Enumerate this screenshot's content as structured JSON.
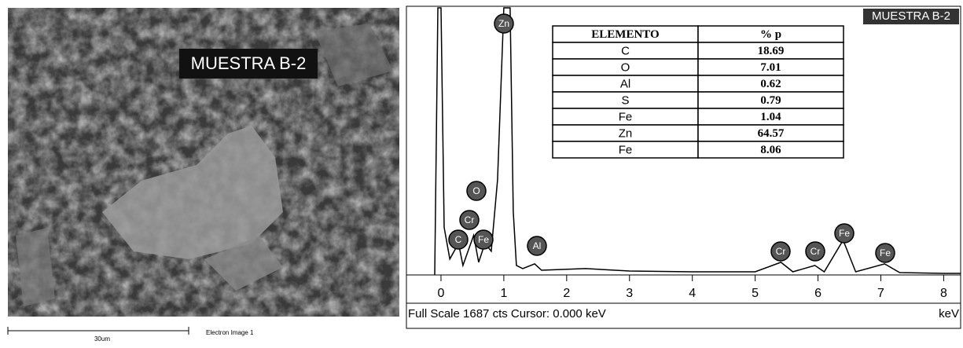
{
  "sem_image": {
    "label": "MUESTRA B-2",
    "scale_bar": "30um",
    "caption": "Electron Image 1"
  },
  "chart_data": {
    "type": "line",
    "title": "MUESTRA B-2",
    "x": [
      -0.1,
      -0.05,
      0.0,
      0.05,
      0.14,
      0.28,
      0.35,
      0.52,
      0.6,
      0.7,
      0.8,
      0.9,
      1.0,
      1.1,
      1.15,
      1.2,
      1.3,
      1.49,
      1.6,
      2.3,
      3.0,
      4.0,
      5.0,
      5.41,
      5.6,
      5.95,
      6.1,
      6.4,
      6.6,
      7.06,
      7.3,
      8.0,
      8.27
    ],
    "values": [
      0,
      1687,
      1687,
      300,
      100,
      200,
      60,
      250,
      80,
      200,
      150,
      600,
      1687,
      1687,
      400,
      60,
      40,
      70,
      30,
      40,
      25,
      20,
      20,
      80,
      20,
      60,
      20,
      220,
      20,
      70,
      15,
      10,
      10
    ],
    "xlim": [
      -0.55,
      8.27
    ],
    "ylim": [
      0,
      1687
    ],
    "xticks": [
      0,
      1,
      2,
      3,
      4,
      5,
      6,
      7,
      8
    ],
    "footer": "Full Scale 1687 cts  Cursor: 0.000 keV",
    "x_unit": "keV",
    "peak_labels": [
      "Zn",
      "O",
      "Cr",
      "C",
      "Fe",
      "Al",
      "Cr",
      "Cr",
      "Fe",
      "Fe"
    ]
  },
  "table": {
    "header": [
      "ELEMENTO",
      "% p"
    ],
    "rows": [
      [
        "C",
        18.69
      ],
      [
        "O",
        7.01
      ],
      [
        "Al",
        0.62
      ],
      [
        "S",
        0.79
      ],
      [
        "Fe",
        1.04
      ],
      [
        "Zn",
        64.57
      ],
      [
        "Fe",
        8.06
      ]
    ]
  }
}
